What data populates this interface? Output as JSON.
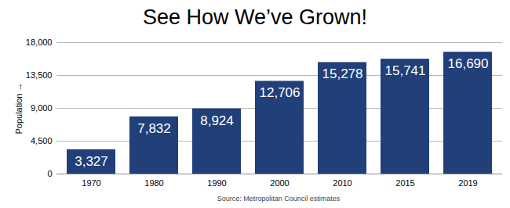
{
  "chart_data": {
    "type": "bar",
    "title": "See How We’ve Grown!",
    "caption": "Source: Metropolitan Council estimates",
    "y_label": "Population",
    "categories": [
      "1970",
      "1980",
      "1990",
      "2000",
      "2010",
      "2015",
      "2019"
    ],
    "values": [
      3327,
      7832,
      8924,
      12706,
      15278,
      15741,
      16690
    ],
    "value_labels": [
      "3,327",
      "7,832",
      "8,924",
      "12,706",
      "15,278",
      "15,741",
      "16,690"
    ],
    "color": "#213f78",
    "ylim": [
      0,
      18000
    ],
    "yticks": [
      0,
      {
        "value": 4500,
        "label": "4,500"
      },
      {
        "value": 9000,
        "label": "9,000"
      },
      {
        "value": 13500,
        "label": "13,500"
      },
      {
        "value": 18000,
        "label": "18,000"
      }
    ],
    "grid": true,
    "data_labels": true
  }
}
